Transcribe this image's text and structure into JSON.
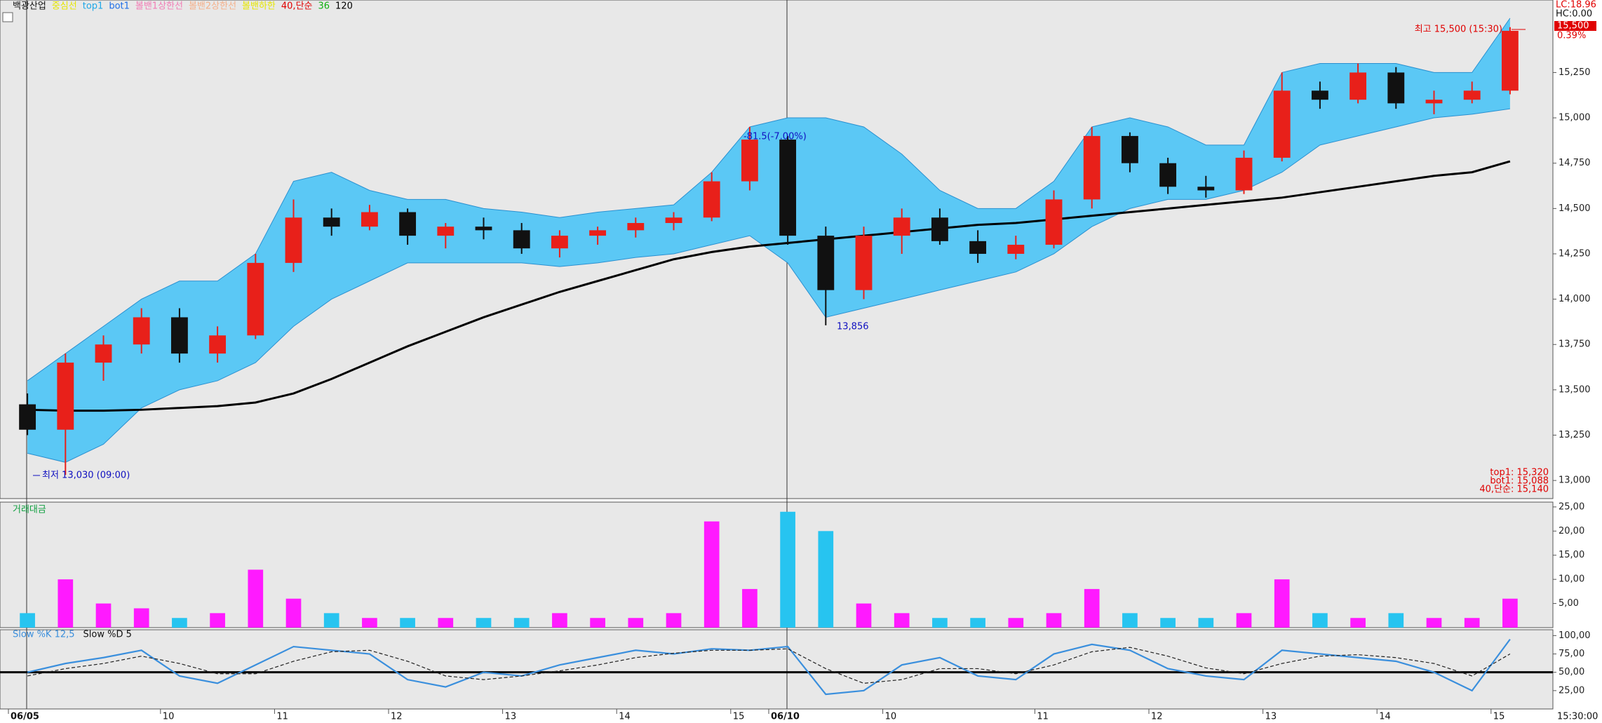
{
  "header": {
    "title": "백광산업",
    "legend": [
      {
        "name": "중심선",
        "color": "#e6e600"
      },
      {
        "name": "top1",
        "color": "#1fa8e8"
      },
      {
        "name": "bot1",
        "color": "#1f6fe8"
      },
      {
        "name": "볼밴1상한선",
        "color": "#f27bb5"
      },
      {
        "name": "볼밴2상한선",
        "color": "#f5b08a"
      },
      {
        "name": "볼밴하한",
        "color": "#e6e600"
      },
      {
        "name": "40,단순",
        "color": "#e00000"
      },
      {
        "name": "36",
        "color": "#10b010"
      },
      {
        "name": "120",
        "color": "#000000"
      }
    ]
  },
  "annotations": [
    {
      "text": "최고 15,500 (15:30)",
      "color": "#e00000"
    },
    {
      "text": "최저 13,030 (09:00)",
      "color": "#1010c0"
    },
    {
      "text": "13,856",
      "color": "#1010c0"
    },
    {
      "text": "-81.5(-7.00%)",
      "color": "#1010c0"
    }
  ],
  "right_panel": {
    "lc": "LC:18.96",
    "hc": "HC:0.00",
    "price": "15,500",
    "change": "0.39%",
    "time": "15:30:00",
    "readouts": [
      {
        "text": "top1: 15,320",
        "color": "#e00000"
      },
      {
        "text": "bot1: 15,088",
        "color": "#e00000"
      },
      {
        "text": "40,단순: 15,140",
        "color": "#e00000"
      }
    ]
  },
  "chart_data": [
    {
      "type": "candlestick",
      "categories": [
        "06/05",
        null,
        null,
        null,
        "10",
        null,
        null,
        "11",
        null,
        null,
        "12",
        null,
        null,
        "13",
        null,
        null,
        "14",
        null,
        null,
        "15",
        "06/10",
        null,
        null,
        "10",
        null,
        null,
        null,
        "11",
        null,
        null,
        "12",
        null,
        null,
        "13",
        null,
        null,
        "14",
        null,
        null,
        "15"
      ],
      "open": [
        13420,
        13280,
        13650,
        13750,
        13900,
        13700,
        13800,
        14200,
        14450,
        14400,
        14480,
        14350,
        14400,
        14380,
        14280,
        14350,
        14380,
        14420,
        14450,
        14650,
        14880,
        14350,
        14050,
        14350,
        14450,
        14320,
        14250,
        14300,
        14550,
        14900,
        14750,
        14620,
        14600,
        14780,
        15150,
        15100,
        15250,
        15080,
        15100,
        15150
      ],
      "high": [
        13480,
        13700,
        13800,
        13950,
        13950,
        13850,
        14250,
        14550,
        14500,
        14520,
        14500,
        14420,
        14450,
        14420,
        14380,
        14400,
        14450,
        14480,
        14700,
        14950,
        14900,
        14400,
        14400,
        14500,
        14500,
        14380,
        14350,
        14600,
        14950,
        14920,
        14780,
        14680,
        14820,
        15250,
        15200,
        15300,
        15280,
        15150,
        15200,
        15500
      ],
      "low": [
        13250,
        13030,
        13550,
        13700,
        13650,
        13650,
        13780,
        14150,
        14350,
        14380,
        14300,
        14280,
        14330,
        14250,
        14230,
        14300,
        14340,
        14380,
        14430,
        14600,
        14300,
        13856,
        14000,
        14250,
        14300,
        14200,
        14220,
        14280,
        14500,
        14700,
        14580,
        14560,
        14580,
        14760,
        15050,
        15080,
        15050,
        15020,
        15080,
        15130
      ],
      "close": [
        13280,
        13650,
        13750,
        13900,
        13700,
        13800,
        14200,
        14450,
        14400,
        14480,
        14350,
        14400,
        14380,
        14280,
        14350,
        14380,
        14420,
        14450,
        14650,
        14880,
        14350,
        14050,
        14350,
        14450,
        14320,
        14250,
        14300,
        14550,
        14900,
        14750,
        14620,
        14600,
        14780,
        15150,
        15100,
        15250,
        15080,
        15100,
        15150,
        15480
      ],
      "up_color": "#e8201a",
      "down_color": "#111111",
      "series": [
        {
          "name": "top1",
          "color": "#5bc8f5",
          "values": [
            13550,
            13700,
            13850,
            14000,
            14100,
            14100,
            14250,
            14650,
            14700,
            14600,
            14550,
            14550,
            14500,
            14480,
            14450,
            14480,
            14500,
            14520,
            14700,
            14950,
            15000,
            15000,
            14950,
            14800,
            14600,
            14500,
            14500,
            14650,
            14950,
            15000,
            14950,
            14850,
            14850,
            15250,
            15300,
            15300,
            15300,
            15250,
            15250,
            15550
          ]
        },
        {
          "name": "bot1",
          "color": "#5bc8f5",
          "values": [
            13150,
            13100,
            13200,
            13400,
            13500,
            13550,
            13650,
            13850,
            14000,
            14100,
            14200,
            14200,
            14200,
            14200,
            14180,
            14200,
            14230,
            14250,
            14300,
            14350,
            14200,
            13900,
            13950,
            14000,
            14050,
            14100,
            14150,
            14250,
            14400,
            14500,
            14550,
            14550,
            14600,
            14700,
            14850,
            14900,
            14950,
            15000,
            15020,
            15050
          ]
        },
        {
          "name": "120",
          "color": "#000000",
          "values": [
            13390,
            13385,
            13385,
            13390,
            13400,
            13410,
            13430,
            13480,
            13560,
            13650,
            13740,
            13820,
            13900,
            13970,
            14040,
            14100,
            14160,
            14220,
            14260,
            14290,
            14310,
            14330,
            14350,
            14370,
            14390,
            14410,
            14420,
            14440,
            14460,
            14480,
            14500,
            14520,
            14540,
            14560,
            14590,
            14620,
            14650,
            14680,
            14700,
            14760
          ]
        }
      ],
      "ylim": [
        12900,
        15650
      ],
      "yticks": [
        {
          "value": 13000,
          "label": "13,000"
        },
        {
          "value": 13250,
          "label": "13,250"
        },
        {
          "value": 13500,
          "label": "13,500"
        },
        {
          "value": 13750,
          "label": "13,750"
        },
        {
          "value": 14000,
          "label": "14,000"
        },
        {
          "value": 14250,
          "label": "14,250"
        },
        {
          "value": 14500,
          "label": "14,500"
        },
        {
          "value": 14750,
          "label": "14,750"
        },
        {
          "value": 15000,
          "label": "15,000"
        },
        {
          "value": 15250,
          "label": "15,250"
        }
      ]
    },
    {
      "type": "bar",
      "title": "거래대금",
      "up_color": "#ff1aff",
      "down_color": "#27c4f0",
      "values": [
        3,
        10,
        5,
        4,
        2,
        3,
        12,
        6,
        3,
        2,
        2,
        2,
        2,
        2,
        3,
        2,
        2,
        3,
        22,
        8,
        24,
        20,
        5,
        3,
        2,
        2,
        2,
        3,
        8,
        3,
        2,
        2,
        3,
        10,
        3,
        2,
        3,
        2,
        2,
        6
      ],
      "ylim": [
        0,
        26
      ],
      "yticks": [
        {
          "value": 5,
          "label": "5,00"
        },
        {
          "value": 10,
          "label": "10,00"
        },
        {
          "value": 15,
          "label": "15,00"
        },
        {
          "value": 20,
          "label": "20,00"
        },
        {
          "value": 25,
          "label": "25,00"
        }
      ]
    },
    {
      "type": "line",
      "hline": 50,
      "series": [
        {
          "name": "Slow %K 12,5",
          "color": "#3a8fdd",
          "values": [
            50,
            62,
            70,
            80,
            45,
            35,
            60,
            85,
            80,
            75,
            40,
            30,
            50,
            45,
            60,
            70,
            80,
            75,
            82,
            80,
            85,
            20,
            25,
            60,
            70,
            45,
            40,
            75,
            88,
            80,
            55,
            45,
            40,
            80,
            75,
            70,
            65,
            50,
            25,
            95
          ]
        },
        {
          "name": "Slow %D 5",
          "color": "#222222",
          "dash": true,
          "values": [
            45,
            55,
            62,
            72,
            62,
            48,
            48,
            65,
            78,
            80,
            65,
            45,
            40,
            45,
            52,
            60,
            70,
            76,
            80,
            80,
            82,
            55,
            35,
            40,
            55,
            55,
            48,
            60,
            78,
            84,
            72,
            56,
            48,
            62,
            72,
            74,
            70,
            62,
            45,
            75
          ]
        }
      ],
      "ylim": [
        0,
        108
      ],
      "yticks": [
        {
          "value": 25,
          "label": "25,00"
        },
        {
          "value": 50,
          "label": "50,00"
        },
        {
          "value": 75,
          "label": "75,00"
        },
        {
          "value": 100,
          "label": "100,00"
        }
      ]
    }
  ]
}
